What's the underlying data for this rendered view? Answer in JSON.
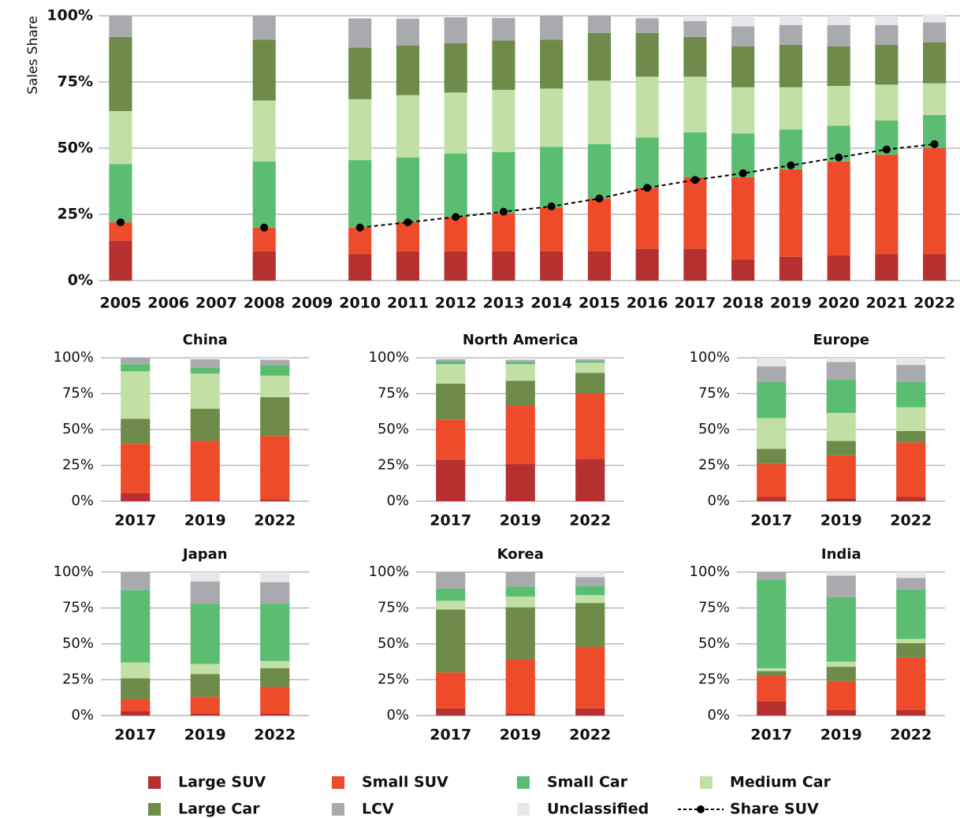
{
  "chart_data": [
    {
      "type": "bar",
      "stacked": true,
      "y_label": "Sales Share",
      "categories": [
        "2005",
        "2006",
        "2007",
        "2008",
        "2009",
        "2010",
        "2011",
        "2012",
        "2013",
        "2014",
        "2015",
        "2016",
        "2017",
        "2018",
        "2019",
        "2020",
        "2021",
        "2022"
      ],
      "ylim": [
        0,
        100
      ],
      "yticks": [
        {
          "value": 0,
          "label": "0%"
        },
        {
          "value": 25,
          "label": "25%"
        },
        {
          "value": 50,
          "label": "50%"
        },
        {
          "value": 75,
          "label": "75%"
        },
        {
          "value": 100,
          "label": "100%"
        }
      ],
      "grid": true,
      "series": [
        {
          "name": "Large SUV",
          "color": "#b5302e",
          "values": [
            15,
            null,
            null,
            11,
            null,
            10,
            11,
            11,
            11,
            11,
            11,
            12,
            12,
            8,
            9,
            9.5,
            10,
            10
          ]
        },
        {
          "name": "Small SUV",
          "color": "#ee4b2b",
          "values": [
            7,
            null,
            null,
            9,
            null,
            10,
            11,
            13,
            14.5,
            16.5,
            20,
            23,
            27,
            31,
            33,
            35.5,
            37.5,
            40
          ]
        },
        {
          "name": "Small Car",
          "color": "#5bbd72",
          "values": [
            22,
            null,
            null,
            25,
            null,
            25.5,
            24.5,
            24,
            23,
            23,
            20.5,
            19,
            17,
            16.5,
            15,
            13.5,
            13,
            12.5
          ]
        },
        {
          "name": "Medium Car",
          "color": "#c2e0a6",
          "values": [
            20,
            null,
            null,
            23,
            null,
            23,
            23.5,
            23,
            23.5,
            22,
            24,
            23,
            21,
            17.5,
            16,
            15,
            13.5,
            12
          ]
        },
        {
          "name": "Large Car",
          "color": "#6e8b4a",
          "values": [
            28,
            null,
            null,
            23,
            null,
            19.5,
            18.7,
            18.6,
            18.7,
            18.5,
            18,
            16.5,
            15,
            15.5,
            16,
            15,
            15,
            15.5
          ]
        },
        {
          "name": "LCV",
          "color": "#a9aaad",
          "values": [
            8,
            null,
            null,
            9,
            null,
            11,
            10.1,
            9.8,
            8.4,
            9,
            6.5,
            5.5,
            6,
            7.5,
            7.5,
            8,
            7.5,
            7.5
          ]
        },
        {
          "name": "Unclassified",
          "color": "#e6e7e9",
          "values": [
            0,
            null,
            null,
            0,
            null,
            0,
            1,
            0.6,
            0.6,
            0,
            0,
            1,
            2,
            4,
            3.5,
            3.5,
            3.5,
            3
          ]
        },
        {
          "name": "Share SUV",
          "type": "line",
          "color": "#000000",
          "values": [
            22,
            null,
            null,
            20,
            null,
            20,
            22,
            24,
            26,
            28,
            31,
            35,
            38,
            40.5,
            43.5,
            46.5,
            49.5,
            51.5
          ]
        }
      ]
    },
    {
      "type": "bar",
      "stacked": true,
      "title": "China",
      "categories": [
        "2017",
        "2019",
        "2022"
      ],
      "ylim": [
        0,
        100
      ],
      "yticks": [
        {
          "value": 0,
          "label": "0%"
        },
        {
          "value": 25,
          "label": "25%"
        },
        {
          "value": 50,
          "label": "50%"
        },
        {
          "value": 75,
          "label": "75%"
        },
        {
          "value": 100,
          "label": "100%"
        }
      ],
      "grid": true,
      "series": [
        {
          "name": "Large SUV",
          "color": "#b5302e",
          "values": [
            5.5,
            0.5,
            1.5
          ]
        },
        {
          "name": "Small SUV",
          "color": "#ee4b2b",
          "values": [
            34.5,
            41.5,
            44
          ]
        },
        {
          "name": "Large Car",
          "color": "#6e8b4a",
          "values": [
            17.5,
            22.5,
            27
          ]
        },
        {
          "name": "Medium Car",
          "color": "#c2e0a6",
          "values": [
            33,
            24.5,
            15
          ]
        },
        {
          "name": "Small Car",
          "color": "#5bbd72",
          "values": [
            5,
            4,
            7
          ]
        },
        {
          "name": "LCV",
          "color": "#a9aaad",
          "values": [
            4.5,
            6,
            4
          ]
        },
        {
          "name": "Unclassified",
          "color": "#e6e7e9",
          "values": [
            0,
            1,
            1.5
          ]
        }
      ]
    },
    {
      "type": "bar",
      "stacked": true,
      "title": "North America",
      "categories": [
        "2017",
        "2019",
        "2022"
      ],
      "ylim": [
        0,
        100
      ],
      "yticks": [
        {
          "value": 0,
          "label": "0%"
        },
        {
          "value": 25,
          "label": "25%"
        },
        {
          "value": 50,
          "label": "50%"
        },
        {
          "value": 75,
          "label": "75%"
        },
        {
          "value": 100,
          "label": "100%"
        }
      ],
      "grid": true,
      "series": [
        {
          "name": "Large SUV",
          "color": "#b5302e",
          "values": [
            29,
            26,
            29.5
          ]
        },
        {
          "name": "Small SUV",
          "color": "#ee4b2b",
          "values": [
            28,
            40.5,
            45.5
          ]
        },
        {
          "name": "Large Car",
          "color": "#6e8b4a",
          "values": [
            25,
            17.5,
            14.5
          ]
        },
        {
          "name": "Medium Car",
          "color": "#c2e0a6",
          "values": [
            13.5,
            11.5,
            7
          ]
        },
        {
          "name": "Small Car",
          "color": "#5bbd72",
          "values": [
            2,
            1.5,
            1
          ]
        },
        {
          "name": "LCV",
          "color": "#a9aaad",
          "values": [
            1.5,
            1.5,
            1.5
          ]
        },
        {
          "name": "Unclassified",
          "color": "#e6e7e9",
          "values": [
            1,
            1.5,
            1
          ]
        }
      ]
    },
    {
      "type": "bar",
      "stacked": true,
      "title": "Europe",
      "categories": [
        "2017",
        "2019",
        "2022"
      ],
      "ylim": [
        0,
        100
      ],
      "yticks": [
        {
          "value": 0,
          "label": "0%"
        },
        {
          "value": 25,
          "label": "25%"
        },
        {
          "value": 50,
          "label": "50%"
        },
        {
          "value": 75,
          "label": "75%"
        },
        {
          "value": 100,
          "label": "100%"
        }
      ],
      "grid": true,
      "series": [
        {
          "name": "Large SUV",
          "color": "#b5302e",
          "values": [
            3,
            2,
            3
          ]
        },
        {
          "name": "Small SUV",
          "color": "#ee4b2b",
          "values": [
            23,
            30,
            38
          ]
        },
        {
          "name": "Large Car",
          "color": "#6e8b4a",
          "values": [
            10.5,
            10,
            8
          ]
        },
        {
          "name": "Medium Car",
          "color": "#c2e0a6",
          "values": [
            21.5,
            19.5,
            16.5
          ]
        },
        {
          "name": "Small Car",
          "color": "#5bbd72",
          "values": [
            25,
            23.5,
            17.5
          ]
        },
        {
          "name": "LCV",
          "color": "#a9aaad",
          "values": [
            11,
            12,
            12
          ]
        },
        {
          "name": "Unclassified",
          "color": "#e6e7e9",
          "values": [
            6,
            3,
            5
          ]
        }
      ]
    },
    {
      "type": "bar",
      "stacked": true,
      "title": "Japan",
      "categories": [
        "2017",
        "2019",
        "2022"
      ],
      "ylim": [
        0,
        100
      ],
      "yticks": [
        {
          "value": 0,
          "label": "0%"
        },
        {
          "value": 25,
          "label": "25%"
        },
        {
          "value": 50,
          "label": "50%"
        },
        {
          "value": 75,
          "label": "75%"
        },
        {
          "value": 100,
          "label": "100%"
        }
      ],
      "grid": true,
      "series": [
        {
          "name": "Large SUV",
          "color": "#b5302e",
          "values": [
            3,
            1.5,
            1.5
          ]
        },
        {
          "name": "Small SUV",
          "color": "#ee4b2b",
          "values": [
            8.5,
            11.5,
            18.5
          ]
        },
        {
          "name": "Large Car",
          "color": "#6e8b4a",
          "values": [
            14.5,
            16,
            13
          ]
        },
        {
          "name": "Medium Car",
          "color": "#c2e0a6",
          "values": [
            11,
            7,
            5
          ]
        },
        {
          "name": "Small Car",
          "color": "#5bbd72",
          "values": [
            50.5,
            42,
            40
          ]
        },
        {
          "name": "LCV",
          "color": "#a9aaad",
          "values": [
            12.5,
            15.5,
            15
          ]
        },
        {
          "name": "Unclassified",
          "color": "#e6e7e9",
          "values": [
            0,
            6.5,
            7
          ]
        }
      ]
    },
    {
      "type": "bar",
      "stacked": true,
      "title": "Korea",
      "categories": [
        "2017",
        "2019",
        "2022"
      ],
      "ylim": [
        0,
        100
      ],
      "yticks": [
        {
          "value": 0,
          "label": "0%"
        },
        {
          "value": 25,
          "label": "25%"
        },
        {
          "value": 50,
          "label": "50%"
        },
        {
          "value": 75,
          "label": "75%"
        },
        {
          "value": 100,
          "label": "100%"
        }
      ],
      "grid": true,
      "series": [
        {
          "name": "Large SUV",
          "color": "#b5302e",
          "values": [
            5,
            1.5,
            5
          ]
        },
        {
          "name": "Small SUV",
          "color": "#ee4b2b",
          "values": [
            25,
            37.5,
            43
          ]
        },
        {
          "name": "Large Car",
          "color": "#6e8b4a",
          "values": [
            44,
            36.5,
            30.5
          ]
        },
        {
          "name": "Medium Car",
          "color": "#c2e0a6",
          "values": [
            6,
            7.5,
            5.5
          ]
        },
        {
          "name": "Small Car",
          "color": "#5bbd72",
          "values": [
            8.5,
            7,
            6.5
          ]
        },
        {
          "name": "LCV",
          "color": "#a9aaad",
          "values": [
            11.5,
            10,
            6
          ]
        },
        {
          "name": "Unclassified",
          "color": "#e6e7e9",
          "values": [
            0,
            0,
            3.5
          ]
        }
      ]
    },
    {
      "type": "bar",
      "stacked": true,
      "title": "India",
      "categories": [
        "2017",
        "2019",
        "2022"
      ],
      "ylim": [
        0,
        100
      ],
      "yticks": [
        {
          "value": 0,
          "label": "0%"
        },
        {
          "value": 25,
          "label": "25%"
        },
        {
          "value": 50,
          "label": "50%"
        },
        {
          "value": 75,
          "label": "75%"
        },
        {
          "value": 100,
          "label": "100%"
        }
      ],
      "grid": true,
      "series": [
        {
          "name": "Large SUV",
          "color": "#b5302e",
          "values": [
            10,
            4,
            4
          ]
        },
        {
          "name": "Small SUV",
          "color": "#ee4b2b",
          "values": [
            18,
            20,
            36.5
          ]
        },
        {
          "name": "Large Car",
          "color": "#6e8b4a",
          "values": [
            3,
            10,
            10
          ]
        },
        {
          "name": "Medium Car",
          "color": "#c2e0a6",
          "values": [
            2,
            3.5,
            3
          ]
        },
        {
          "name": "Small Car",
          "color": "#5bbd72",
          "values": [
            61.5,
            45,
            34.5
          ]
        },
        {
          "name": "LCV",
          "color": "#a9aaad",
          "values": [
            5.5,
            15,
            8
          ]
        },
        {
          "name": "Unclassified",
          "color": "#e6e7e9",
          "values": [
            0,
            2.5,
            4
          ]
        }
      ]
    }
  ]
}
